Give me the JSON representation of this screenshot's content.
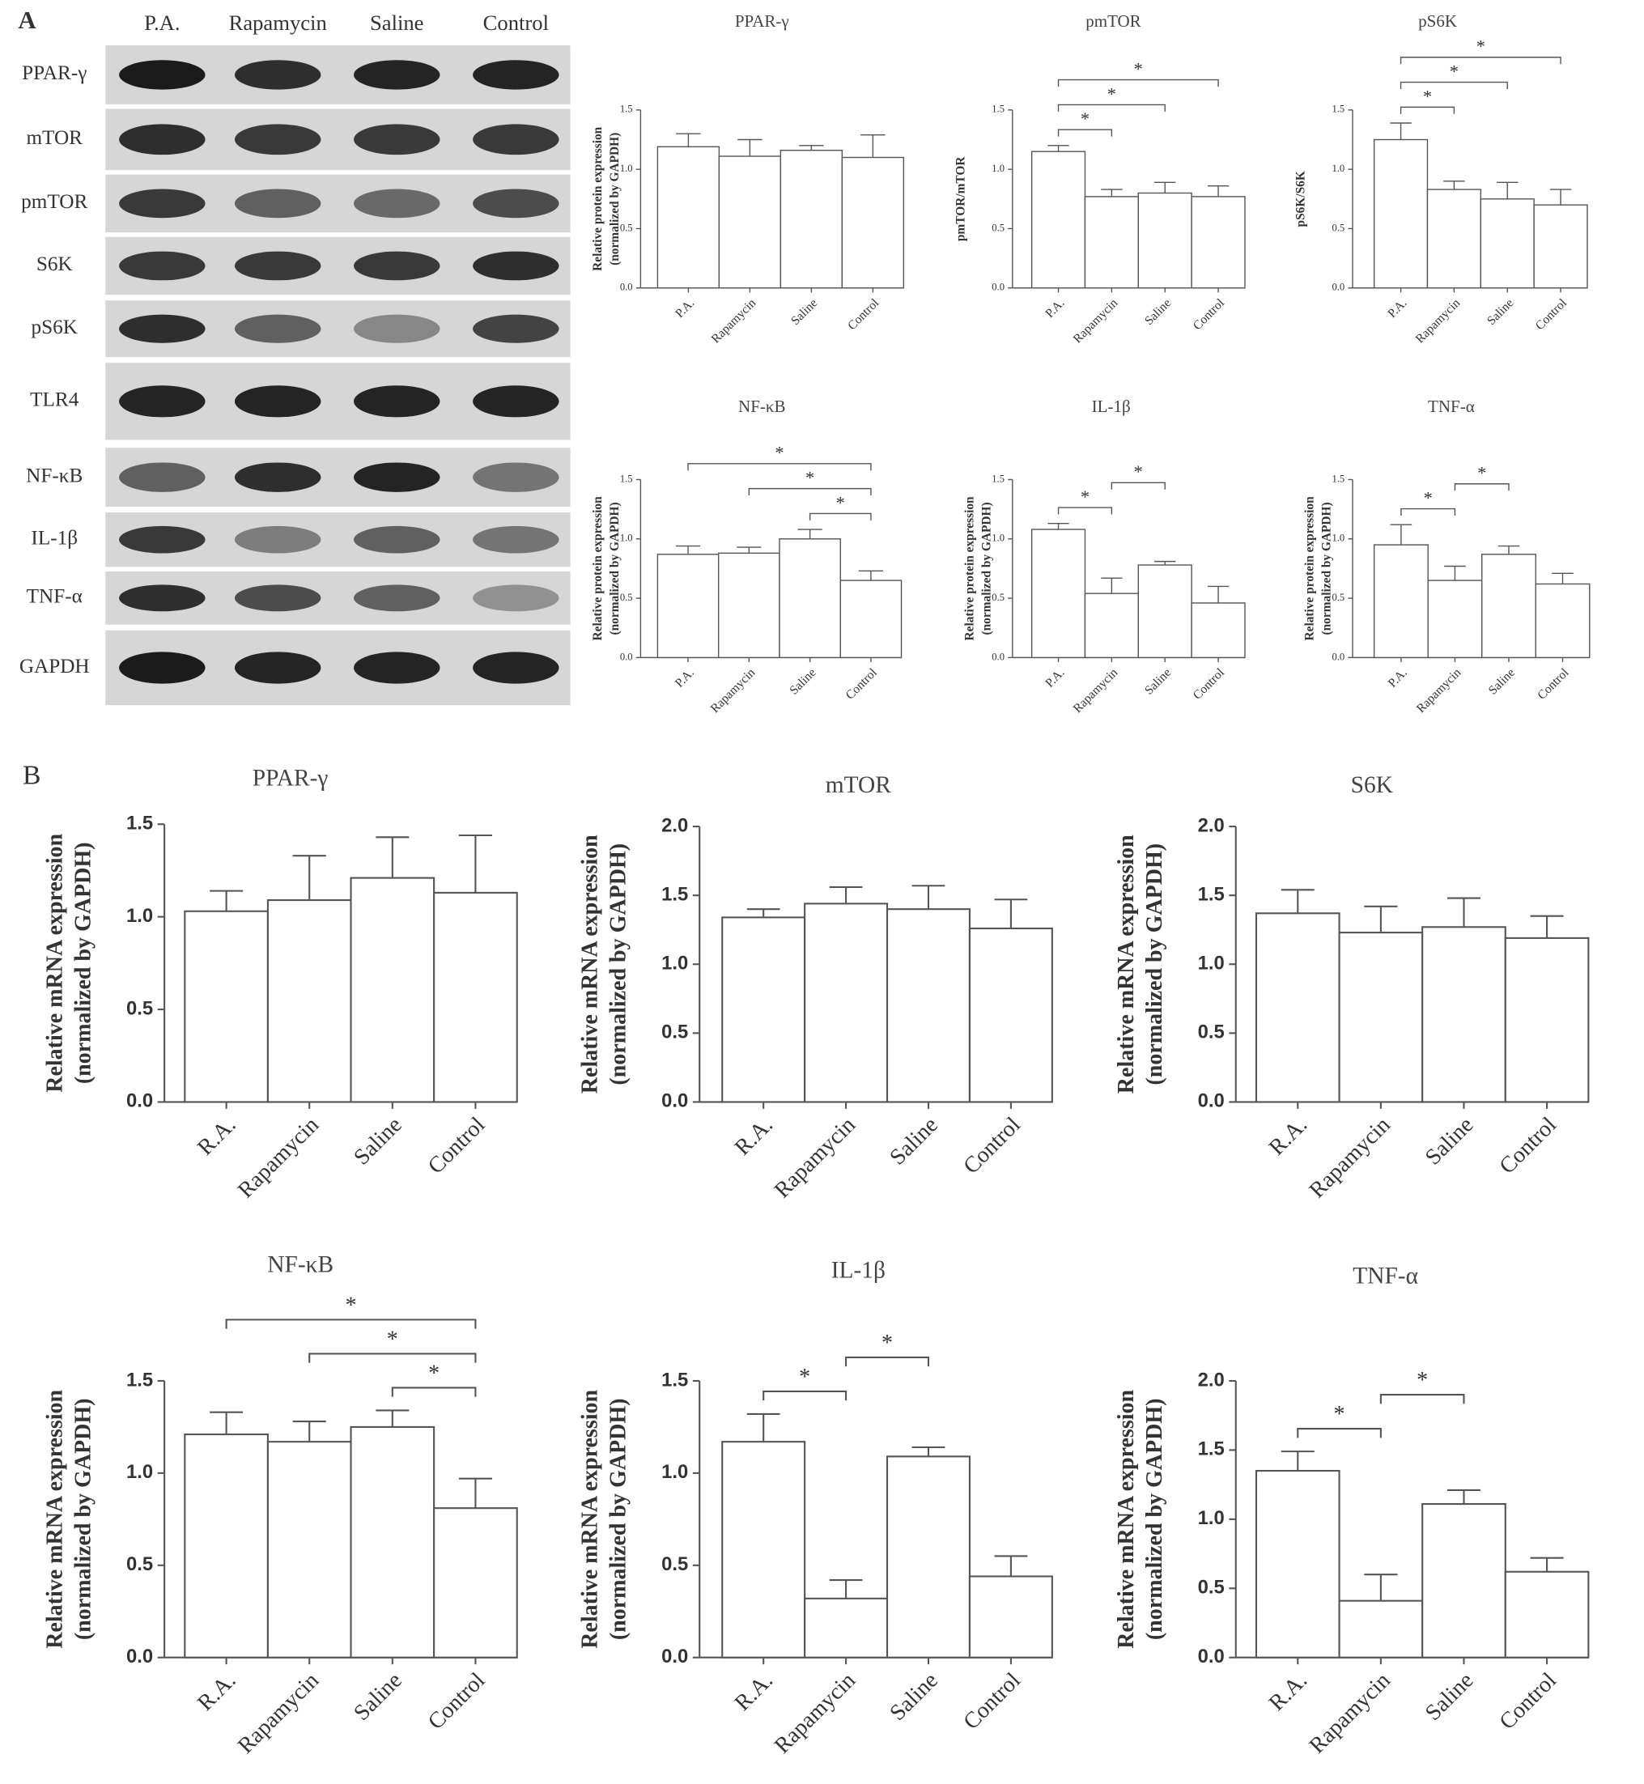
{
  "panel_labels": [
    "A",
    "B"
  ],
  "western_blot": {
    "lanes": [
      "P.A.",
      "Rapamycin",
      "Saline",
      "Control"
    ],
    "proteins": [
      "PPAR-γ",
      "mTOR",
      "pmTOR",
      "S6K",
      "pS6K",
      "TLR4",
      "NF-κB",
      "IL-1β",
      "TNF-α",
      "GAPDH"
    ]
  },
  "chart_data": [
    {
      "type": "bar",
      "title": "PPAR-γ",
      "ylabel": [
        "Relative protein expression",
        "(normalized by GAPDH)"
      ],
      "categories": [
        "P.A.",
        "Rapamycin",
        "Saline",
        "Control"
      ],
      "values": [
        1.19,
        1.11,
        1.16,
        1.1
      ],
      "errors": [
        0.11,
        0.14,
        0.04,
        0.19
      ],
      "color": "#ffffff",
      "ylim": [
        0,
        1.5
      ],
      "yticks": [
        {
          "value": 0,
          "label": "0.0"
        },
        0.5,
        {
          "value": 1,
          "label": "1.0"
        },
        1.5
      ],
      "brackets": []
    },
    {
      "type": "bar",
      "title": "pmTOR",
      "ylabel": [
        "pmTOR/mTOR"
      ],
      "categories": [
        "P.A.",
        "Rapamycin",
        "Saline",
        "Control"
      ],
      "values": [
        1.15,
        0.77,
        0.8,
        0.77
      ],
      "errors": [
        0.05,
        0.06,
        0.09,
        0.09
      ],
      "color": "#ffffff",
      "ylim": [
        0,
        1.5
      ],
      "yticks": [
        {
          "value": 0,
          "label": "0.0"
        },
        0.5,
        {
          "value": 1,
          "label": "1.0"
        },
        1.5
      ],
      "brackets": [
        {
          "between": [
            0,
            1
          ],
          "label": "*"
        },
        {
          "between": [
            0,
            2
          ],
          "label": "*"
        },
        {
          "between": [
            0,
            3
          ],
          "label": "*"
        }
      ]
    },
    {
      "type": "bar",
      "title": "pS6K",
      "ylabel": [
        "pS6K/S6K"
      ],
      "categories": [
        "P.A.",
        "Rapamycin",
        "Saline",
        "Control"
      ],
      "values": [
        1.25,
        0.83,
        0.75,
        0.7
      ],
      "errors": [
        0.14,
        0.07,
        0.14,
        0.13
      ],
      "color": "#ffffff",
      "ylim": [
        0,
        1.5
      ],
      "yticks": [
        {
          "value": 0,
          "label": "0.0"
        },
        0.5,
        {
          "value": 1,
          "label": "1.0"
        },
        1.5
      ],
      "brackets": [
        {
          "between": [
            0,
            1
          ],
          "label": "*"
        },
        {
          "between": [
            0,
            2
          ],
          "label": "*"
        },
        {
          "between": [
            0,
            3
          ],
          "label": "*"
        }
      ]
    },
    {
      "type": "bar",
      "title": "NF-κB",
      "ylabel": [
        "Relative protein expression",
        "(normalized by GAPDH)"
      ],
      "categories": [
        "P.A.",
        "Rapamycin",
        "Saline",
        "Control"
      ],
      "values": [
        0.87,
        0.88,
        1.0,
        0.65
      ],
      "errors": [
        0.07,
        0.05,
        0.08,
        0.08
      ],
      "color": "#ffffff",
      "ylim": [
        0,
        1.5
      ],
      "yticks": [
        {
          "value": 0,
          "label": "0.0"
        },
        0.5,
        {
          "value": 1,
          "label": "1.0"
        },
        1.5
      ],
      "brackets": [
        {
          "between": [
            2,
            3
          ],
          "label": "*"
        },
        {
          "between": [
            1,
            3
          ],
          "label": "*"
        },
        {
          "between": [
            0,
            3
          ],
          "label": "*"
        }
      ]
    },
    {
      "type": "bar",
      "title": "IL-1β",
      "ylabel": [
        "Relative protein expression",
        "(normalized by GAPDH)"
      ],
      "categories": [
        "P.A.",
        "Rapamycin",
        "Saline",
        "Control"
      ],
      "values": [
        1.08,
        0.54,
        0.78,
        0.46
      ],
      "errors": [
        0.05,
        0.13,
        0.03,
        0.14
      ],
      "color": "#ffffff",
      "ylim": [
        0,
        1.5
      ],
      "yticks": [
        {
          "value": 0,
          "label": "0.0"
        },
        0.5,
        {
          "value": 1,
          "label": "1.0"
        },
        1.5
      ],
      "brackets": [
        {
          "between": [
            0,
            1
          ],
          "label": "*"
        },
        {
          "between": [
            1,
            2
          ],
          "label": "*"
        }
      ]
    },
    {
      "type": "bar",
      "title": "TNF-α",
      "ylabel": [
        "Relative protein expression",
        "(normalized by GAPDH)"
      ],
      "categories": [
        "P.A.",
        "Rapamycin",
        "Saline",
        "Control"
      ],
      "values": [
        0.95,
        0.65,
        0.87,
        0.62
      ],
      "errors": [
        0.17,
        0.12,
        0.07,
        0.09
      ],
      "color": "#ffffff",
      "ylim": [
        0,
        1.5
      ],
      "yticks": [
        {
          "value": 0,
          "label": "0.0"
        },
        0.5,
        {
          "value": 1,
          "label": "1.0"
        },
        1.5
      ],
      "brackets": [
        {
          "between": [
            0,
            1
          ],
          "label": "*"
        },
        {
          "between": [
            1,
            2
          ],
          "label": "*"
        }
      ]
    },
    {
      "type": "bar",
      "title": "PPAR-γ",
      "ylabel": [
        "Relative mRNA expression",
        "(normalized by GAPDH)"
      ],
      "categories": [
        "R.A.",
        "Rapamycin",
        "Saline",
        "Control"
      ],
      "values": [
        1.03,
        1.09,
        1.21,
        1.13
      ],
      "errors": [
        0.11,
        0.24,
        0.22,
        0.31
      ],
      "color": "#ffffff",
      "ylim": [
        0,
        1.5
      ],
      "yticks": [
        {
          "value": 0,
          "label": "0.0"
        },
        0.5,
        {
          "value": 1,
          "label": "1.0"
        },
        1.5
      ],
      "brackets": []
    },
    {
      "type": "bar",
      "title": "mTOR",
      "ylabel": [
        "Relative mRNA expression",
        "(normalized by GAPDH)"
      ],
      "categories": [
        "R.A.",
        "Rapamycin",
        "Saline",
        "Control"
      ],
      "values": [
        1.34,
        1.44,
        1.4,
        1.26
      ],
      "errors": [
        0.06,
        0.12,
        0.17,
        0.21
      ],
      "color": "#ffffff",
      "ylim": [
        0,
        2
      ],
      "yticks": [
        {
          "value": 0,
          "label": "0.0"
        },
        0.5,
        {
          "value": 1,
          "label": "1.0"
        },
        1.5,
        {
          "value": 2,
          "label": "2.0"
        }
      ],
      "brackets": []
    },
    {
      "type": "bar",
      "title": "S6K",
      "ylabel": [
        "Relative mRNA expression",
        "(normalized by GAPDH)"
      ],
      "categories": [
        "R.A.",
        "Rapamycin",
        "Saline",
        "Control"
      ],
      "values": [
        1.37,
        1.23,
        1.27,
        1.19
      ],
      "errors": [
        0.17,
        0.19,
        0.21,
        0.16
      ],
      "color": "#ffffff",
      "ylim": [
        0,
        2
      ],
      "yticks": [
        {
          "value": 0,
          "label": "0.0"
        },
        0.5,
        {
          "value": 1,
          "label": "1.0"
        },
        1.5,
        {
          "value": 2,
          "label": "2.0"
        }
      ],
      "brackets": []
    },
    {
      "type": "bar",
      "title": "NF-κB",
      "ylabel": [
        "Relative mRNA expression",
        "(normalized by GAPDH)"
      ],
      "categories": [
        "R.A.",
        "Rapamycin",
        "Saline",
        "Control"
      ],
      "values": [
        1.21,
        1.17,
        1.25,
        0.81
      ],
      "errors": [
        0.12,
        0.11,
        0.09,
        0.16
      ],
      "color": "#ffffff",
      "ylim": [
        0,
        1.5
      ],
      "yticks": [
        {
          "value": 0,
          "label": "0.0"
        },
        0.5,
        {
          "value": 1,
          "label": "1.0"
        },
        1.5
      ],
      "brackets": [
        {
          "between": [
            2,
            3
          ],
          "label": "*"
        },
        {
          "between": [
            1,
            3
          ],
          "label": "*"
        },
        {
          "between": [
            0,
            3
          ],
          "label": "*"
        }
      ]
    },
    {
      "type": "bar",
      "title": "IL-1β",
      "ylabel": [
        "Relative mRNA expression",
        "(normalized by GAPDH)"
      ],
      "categories": [
        "R.A.",
        "Rapamycin",
        "Saline",
        "Control"
      ],
      "values": [
        1.17,
        0.32,
        1.09,
        0.44
      ],
      "errors": [
        0.15,
        0.1,
        0.05,
        0.11
      ],
      "color": "#ffffff",
      "ylim": [
        0,
        1.5
      ],
      "yticks": [
        {
          "value": 0,
          "label": "0.0"
        },
        0.5,
        {
          "value": 1,
          "label": "1.0"
        },
        1.5
      ],
      "brackets": [
        {
          "between": [
            0,
            1
          ],
          "label": "*"
        },
        {
          "between": [
            1,
            2
          ],
          "label": "*"
        }
      ]
    },
    {
      "type": "bar",
      "title": "TNF-α",
      "ylabel": [
        "Relative mRNA expression",
        "(normalized by GAPDH)"
      ],
      "categories": [
        "R.A.",
        "Rapamycin",
        "Saline",
        "Control"
      ],
      "values": [
        1.35,
        0.41,
        1.11,
        0.62
      ],
      "errors": [
        0.14,
        0.19,
        0.1,
        0.1
      ],
      "color": "#ffffff",
      "ylim": [
        0,
        2
      ],
      "yticks": [
        {
          "value": 0,
          "label": "0.0"
        },
        0.5,
        {
          "value": 1,
          "label": "1.0"
        },
        1.5,
        {
          "value": 2,
          "label": "2.0"
        }
      ],
      "brackets": [
        {
          "between": [
            0,
            1
          ],
          "label": "*"
        },
        {
          "between": [
            1,
            2
          ],
          "label": "*"
        }
      ]
    }
  ]
}
